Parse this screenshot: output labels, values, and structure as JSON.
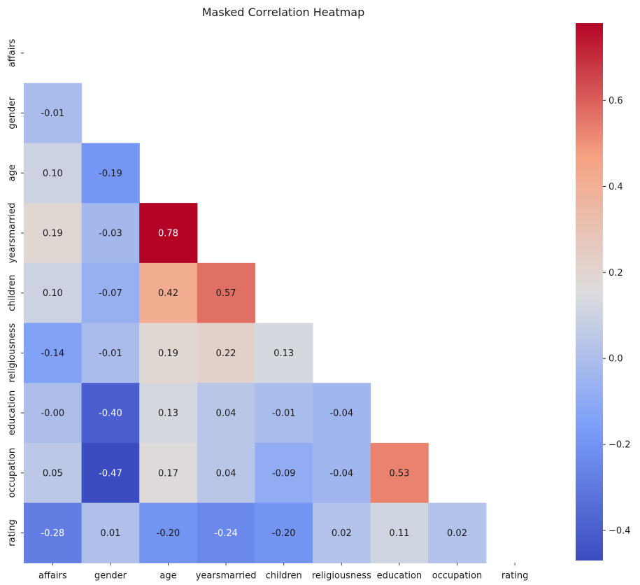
{
  "chart_data": {
    "type": "heatmap",
    "title": "Masked Correlation Heatmap",
    "variables": [
      "affairs",
      "gender",
      "age",
      "yearsmarried",
      "children",
      "religiousness",
      "education",
      "occupation",
      "rating"
    ],
    "mask": "upper triangle including diagonal",
    "value_format": "0.00",
    "cells": [
      {
        "row": "gender",
        "col": "affairs",
        "value": -0.01,
        "label": "-0.01"
      },
      {
        "row": "age",
        "col": "affairs",
        "value": 0.1,
        "label": "0.10"
      },
      {
        "row": "age",
        "col": "gender",
        "value": -0.19,
        "label": "-0.19"
      },
      {
        "row": "yearsmarried",
        "col": "affairs",
        "value": 0.19,
        "label": "0.19"
      },
      {
        "row": "yearsmarried",
        "col": "gender",
        "value": -0.03,
        "label": "-0.03"
      },
      {
        "row": "yearsmarried",
        "col": "age",
        "value": 0.78,
        "label": "0.78"
      },
      {
        "row": "children",
        "col": "affairs",
        "value": 0.1,
        "label": "0.10"
      },
      {
        "row": "children",
        "col": "gender",
        "value": -0.07,
        "label": "-0.07"
      },
      {
        "row": "children",
        "col": "age",
        "value": 0.42,
        "label": "0.42"
      },
      {
        "row": "children",
        "col": "yearsmarried",
        "value": 0.57,
        "label": "0.57"
      },
      {
        "row": "religiousness",
        "col": "affairs",
        "value": -0.14,
        "label": "-0.14"
      },
      {
        "row": "religiousness",
        "col": "gender",
        "value": -0.01,
        "label": "-0.01"
      },
      {
        "row": "religiousness",
        "col": "age",
        "value": 0.19,
        "label": "0.19"
      },
      {
        "row": "religiousness",
        "col": "yearsmarried",
        "value": 0.22,
        "label": "0.22"
      },
      {
        "row": "religiousness",
        "col": "children",
        "value": 0.13,
        "label": "0.13"
      },
      {
        "row": "education",
        "col": "affairs",
        "value": -0.0,
        "label": "-0.00"
      },
      {
        "row": "education",
        "col": "gender",
        "value": -0.4,
        "label": "-0.40"
      },
      {
        "row": "education",
        "col": "age",
        "value": 0.13,
        "label": "0.13"
      },
      {
        "row": "education",
        "col": "yearsmarried",
        "value": 0.04,
        "label": "0.04"
      },
      {
        "row": "education",
        "col": "children",
        "value": -0.01,
        "label": "-0.01"
      },
      {
        "row": "education",
        "col": "religiousness",
        "value": -0.04,
        "label": "-0.04"
      },
      {
        "row": "occupation",
        "col": "affairs",
        "value": 0.05,
        "label": "0.05"
      },
      {
        "row": "occupation",
        "col": "gender",
        "value": -0.47,
        "label": "-0.47"
      },
      {
        "row": "occupation",
        "col": "age",
        "value": 0.17,
        "label": "0.17"
      },
      {
        "row": "occupation",
        "col": "yearsmarried",
        "value": 0.04,
        "label": "0.04"
      },
      {
        "row": "occupation",
        "col": "children",
        "value": -0.09,
        "label": "-0.09"
      },
      {
        "row": "occupation",
        "col": "religiousness",
        "value": -0.04,
        "label": "-0.04"
      },
      {
        "row": "occupation",
        "col": "education",
        "value": 0.53,
        "label": "0.53"
      },
      {
        "row": "rating",
        "col": "affairs",
        "value": -0.28,
        "label": "-0.28"
      },
      {
        "row": "rating",
        "col": "gender",
        "value": 0.01,
        "label": "0.01"
      },
      {
        "row": "rating",
        "col": "age",
        "value": -0.2,
        "label": "-0.20"
      },
      {
        "row": "rating",
        "col": "yearsmarried",
        "value": -0.24,
        "label": "-0.24"
      },
      {
        "row": "rating",
        "col": "children",
        "value": -0.2,
        "label": "-0.20"
      },
      {
        "row": "rating",
        "col": "religiousness",
        "value": 0.02,
        "label": "0.02"
      },
      {
        "row": "rating",
        "col": "education",
        "value": 0.11,
        "label": "0.11"
      },
      {
        "row": "rating",
        "col": "occupation",
        "value": 0.02,
        "label": "0.02"
      }
    ],
    "colorbar": {
      "colormap": "coolwarm",
      "range": [
        -0.47,
        0.78
      ],
      "ticks": [
        -0.4,
        -0.2,
        0.0,
        0.2,
        0.4,
        0.6
      ],
      "tick_labels": [
        "−0.4",
        "−0.2",
        "0.0",
        "0.2",
        "0.4",
        "0.6"
      ]
    }
  }
}
